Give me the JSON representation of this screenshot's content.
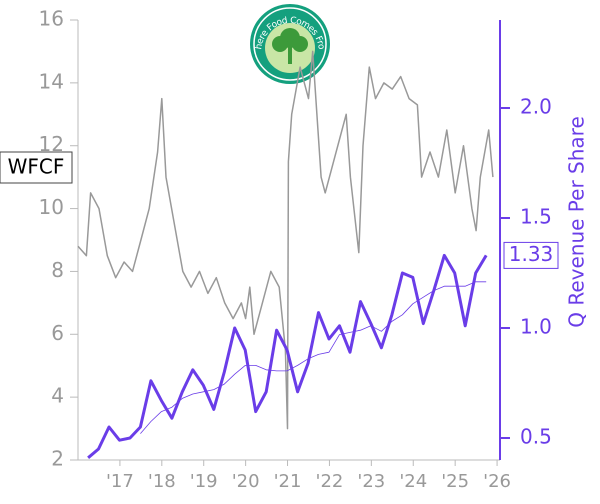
{
  "chart_data": {
    "type": "line",
    "ticker": "WFCF",
    "y2label": "Q Revenue Per Share",
    "logo_text": "Where Food Comes From",
    "xlim": [
      2016,
      2026.07
    ],
    "xticks": [
      {
        "value": 2017,
        "label": "'17"
      },
      {
        "value": 2018,
        "label": "'18"
      },
      {
        "value": 2019,
        "label": "'19"
      },
      {
        "value": 2020,
        "label": "'20"
      },
      {
        "value": 2021,
        "label": "'21"
      },
      {
        "value": 2022,
        "label": "'22"
      },
      {
        "value": 2023,
        "label": "'23"
      },
      {
        "value": 2024,
        "label": "'24"
      },
      {
        "value": 2025,
        "label": "'25"
      },
      {
        "value": 2026,
        "label": "'26"
      }
    ],
    "ylim": [
      2,
      16
    ],
    "yticks": [
      2,
      4,
      6,
      8,
      10,
      12,
      14,
      16
    ],
    "y2lim": [
      0.4,
      2.4
    ],
    "y2ticks": [
      0.5,
      {
        "value": 1,
        "label": "1.0"
      },
      1.5,
      {
        "value": 2,
        "label": "2.0"
      }
    ],
    "series": [
      {
        "axis": "y",
        "color": "#999999",
        "x": [
          2016.0,
          2016.2,
          2016.3,
          2016.5,
          2016.7,
          2016.9,
          2017.1,
          2017.3,
          2017.5,
          2017.7,
          2017.9,
          2018.0,
          2018.1,
          2018.3,
          2018.5,
          2018.7,
          2018.9,
          2019.1,
          2019.3,
          2019.5,
          2019.7,
          2019.9,
          2020.0,
          2020.1,
          2020.2,
          2020.4,
          2020.6,
          2020.8,
          2020.95,
          2021.0,
          2021.02,
          2021.1,
          2021.3,
          2021.5,
          2021.6,
          2021.8,
          2021.9,
          2022.1,
          2022.3,
          2022.4,
          2022.5,
          2022.7,
          2022.8,
          2022.95,
          2023.1,
          2023.3,
          2023.5,
          2023.7,
          2023.9,
          2024.1,
          2024.2,
          2024.4,
          2024.6,
          2024.8,
          2025.0,
          2025.2,
          2025.4,
          2025.5,
          2025.6,
          2025.8,
          2025.9
        ],
        "values": [
          8.8,
          8.5,
          10.5,
          10.0,
          8.5,
          7.8,
          8.3,
          8.0,
          9.0,
          10.0,
          11.8,
          13.5,
          11.0,
          9.5,
          8.0,
          7.5,
          8.0,
          7.3,
          7.8,
          7.0,
          6.5,
          7.0,
          6.5,
          7.5,
          6.0,
          7.0,
          8.0,
          7.5,
          5.5,
          3.0,
          11.5,
          13.0,
          14.5,
          13.5,
          15.0,
          11.0,
          10.5,
          11.5,
          12.5,
          13.0,
          11.0,
          8.6,
          12.0,
          14.5,
          13.5,
          14.0,
          13.8,
          14.2,
          13.5,
          13.3,
          11.0,
          11.8,
          11.0,
          12.5,
          10.5,
          12.0,
          10.0,
          9.3,
          11.0,
          12.5,
          11.0
        ]
      },
      {
        "axis": "y2",
        "color": "#6a3de8",
        "x": [
          2016.24,
          2016.49,
          2016.74,
          2016.99,
          2017.24,
          2017.49,
          2017.74,
          2017.99,
          2018.24,
          2018.49,
          2018.74,
          2018.99,
          2019.24,
          2019.49,
          2019.74,
          2019.99,
          2020.24,
          2020.49,
          2020.74,
          2020.99,
          2021.24,
          2021.49,
          2021.74,
          2021.99,
          2022.24,
          2022.49,
          2022.74,
          2022.99,
          2023.24,
          2023.49,
          2023.74,
          2023.99,
          2024.24,
          2024.49,
          2024.74,
          2024.99,
          2025.24,
          2025.49,
          2025.74
        ],
        "values": [
          0.41,
          0.45,
          0.55,
          0.49,
          0.5,
          0.55,
          0.76,
          0.67,
          0.59,
          0.71,
          0.81,
          0.74,
          0.63,
          0.8,
          1.0,
          0.9,
          0.62,
          0.71,
          0.99,
          0.9,
          0.71,
          0.84,
          1.07,
          0.95,
          1.01,
          0.89,
          1.12,
          1.02,
          0.91,
          1.06,
          1.25,
          1.23,
          1.02,
          1.17,
          1.33,
          1.25,
          1.01,
          1.25,
          1.33
        ]
      },
      {
        "axis": "y2",
        "color": "#6a3de8",
        "x": [
          2016.24,
          2016.49,
          2016.74,
          2016.99,
          2017.24,
          2017.49,
          2017.74,
          2017.99,
          2018.24,
          2018.49,
          2018.74,
          2018.99,
          2019.24,
          2019.49,
          2019.74,
          2019.99,
          2020.24,
          2020.49,
          2020.74,
          2020.99,
          2021.24,
          2021.49,
          2021.74,
          2021.99,
          2022.24,
          2022.49,
          2022.74,
          2022.99,
          2023.24,
          2023.49,
          2023.74,
          2023.99,
          2024.24,
          2024.49,
          2024.74,
          2024.99,
          2025.24,
          2025.49,
          2025.74
        ],
        "values": [
          null,
          null,
          null,
          null,
          null,
          0.52,
          0.575,
          0.62,
          0.64,
          0.68,
          0.7,
          0.71,
          0.72,
          0.745,
          0.79,
          0.83,
          0.83,
          0.81,
          0.805,
          0.805,
          0.83,
          0.86,
          0.88,
          0.89,
          0.97,
          0.98,
          0.99,
          1.01,
          0.985,
          1.03,
          1.06,
          1.11,
          1.14,
          1.17,
          1.19,
          1.19,
          1.19,
          1.21,
          1.21
        ]
      }
    ]
  }
}
